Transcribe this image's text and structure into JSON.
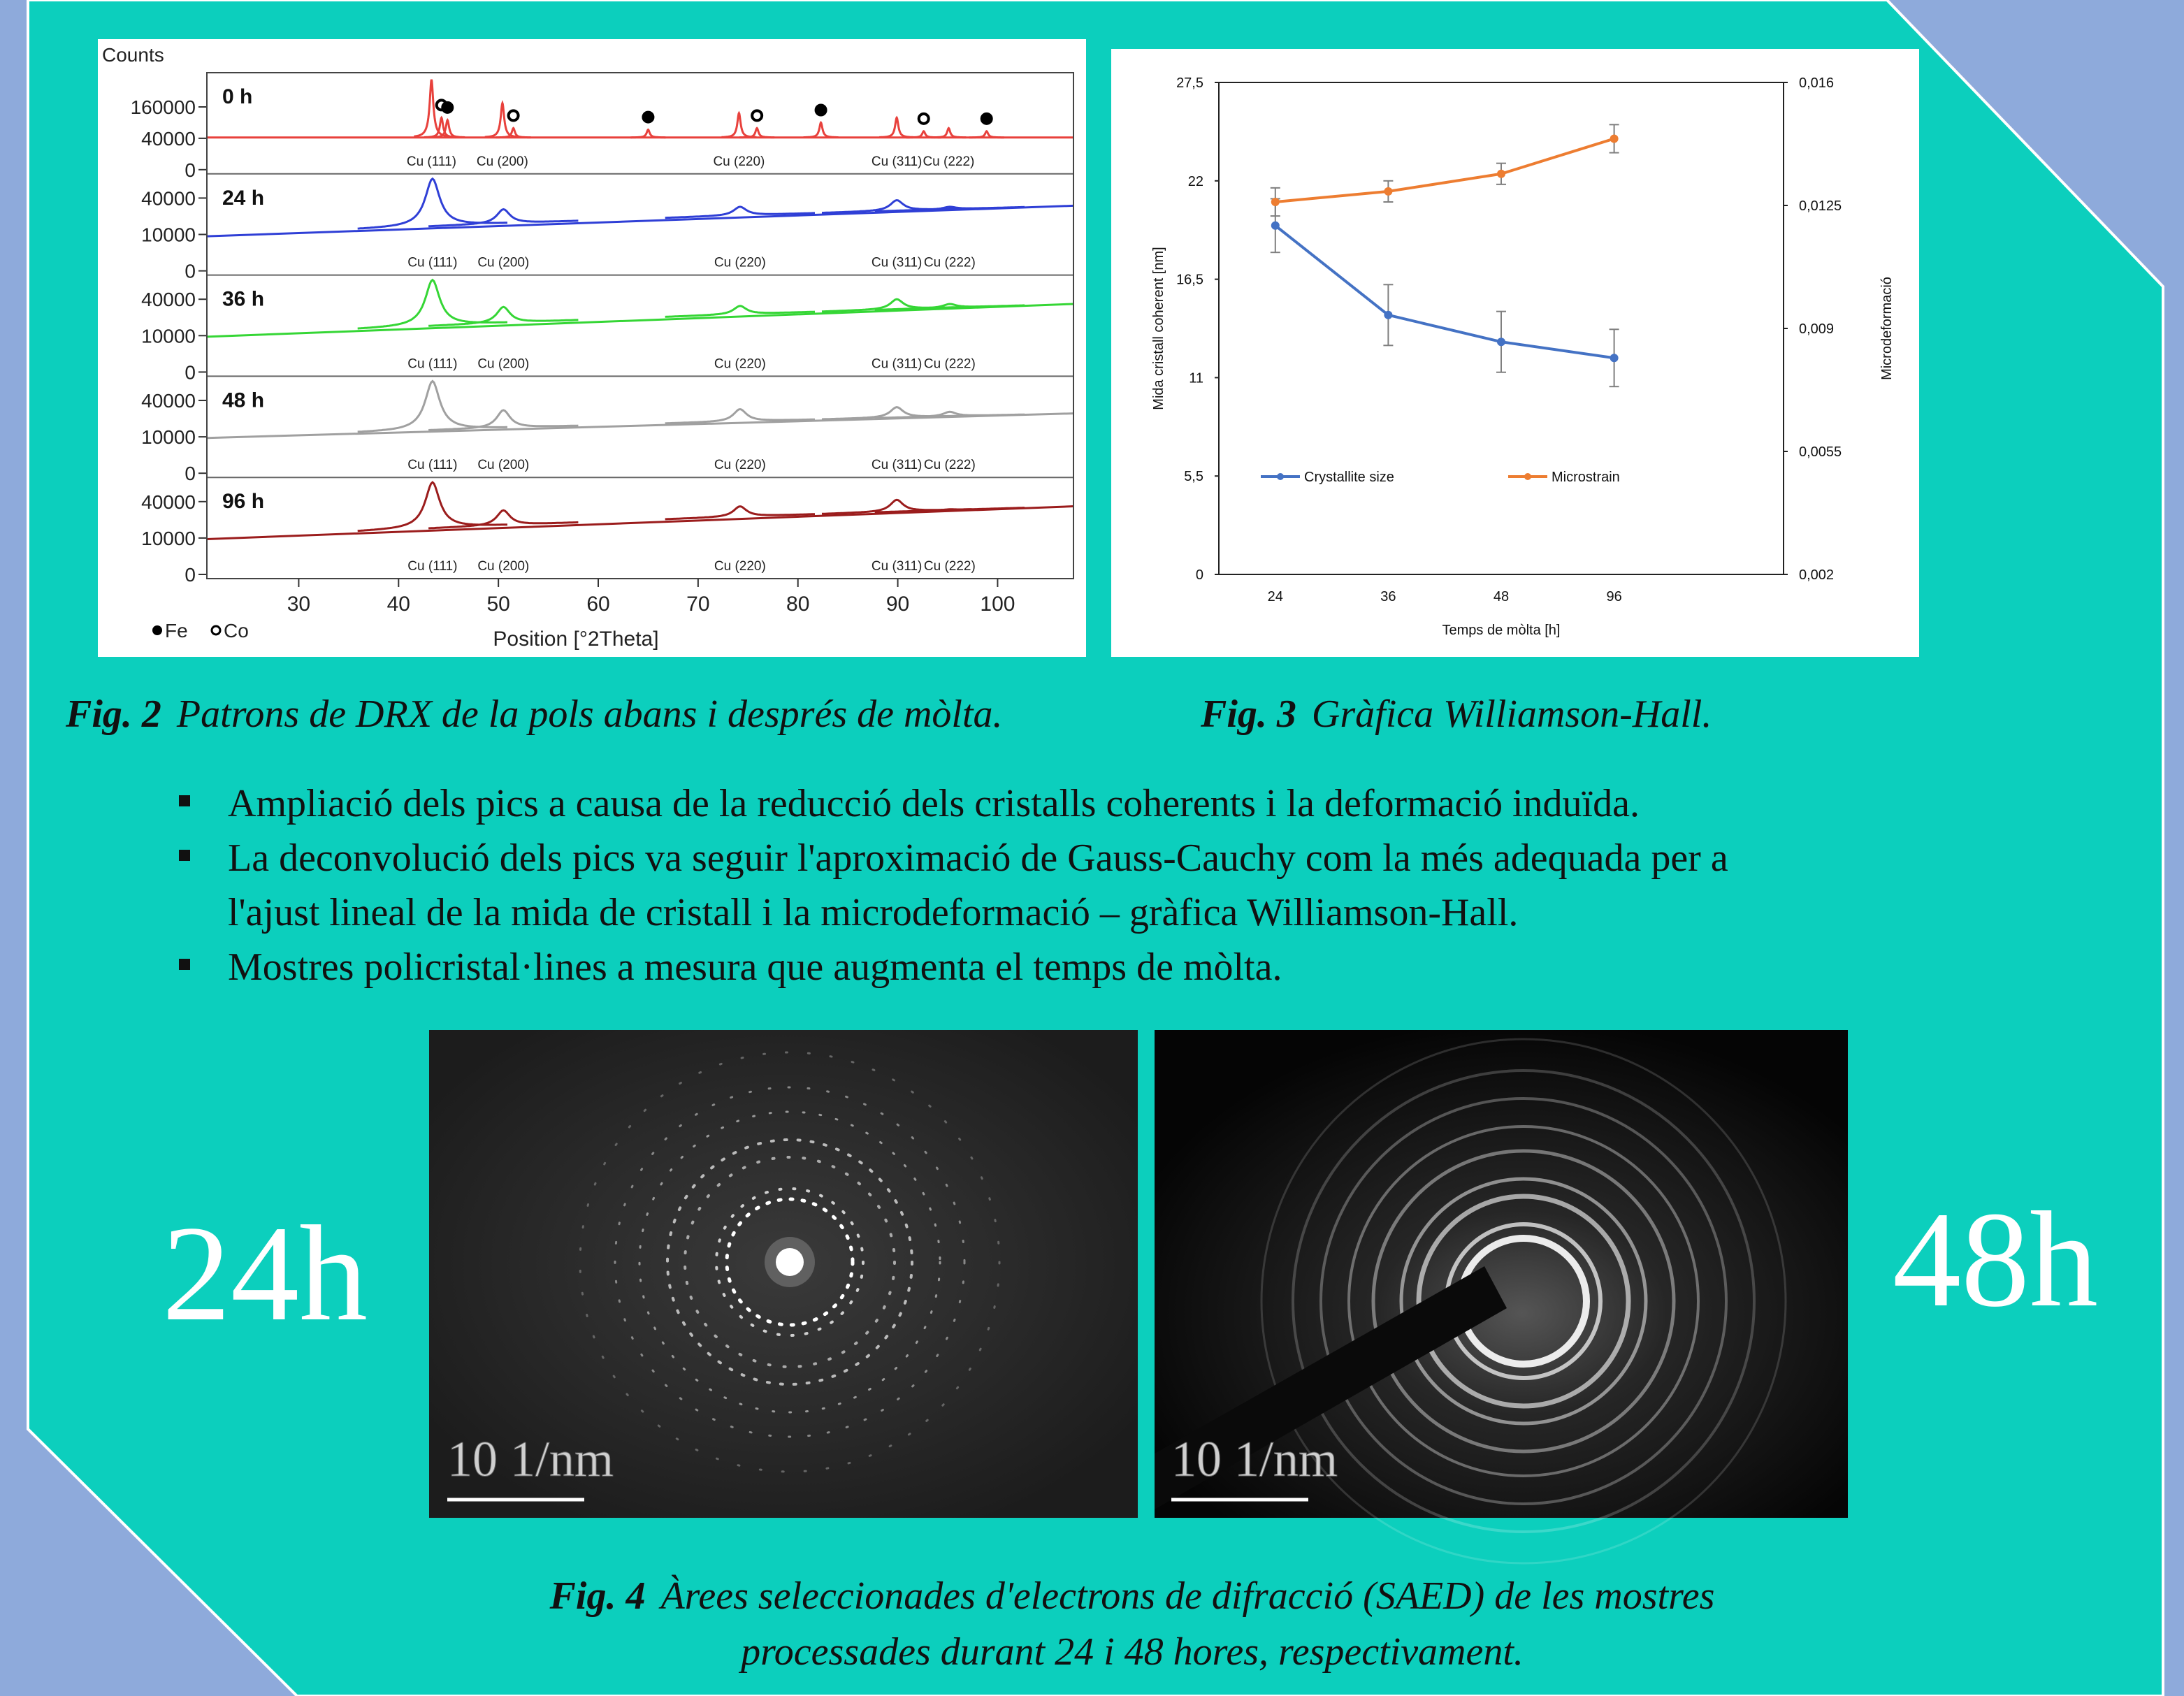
{
  "chart_data": [
    {
      "type": "xrd",
      "y_label": "Counts",
      "x_label": "Position [°2Theta]",
      "xlim": [
        20.8,
        107.6
      ],
      "xticks": [
        30,
        40,
        50,
        60,
        70,
        80,
        90,
        100
      ],
      "yscale": "sqrt",
      "legend": [
        {
          "name": "Fe",
          "marker": "filled"
        },
        {
          "name": "Co",
          "marker": "open"
        }
      ],
      "panels": [
        {
          "name": "0 h",
          "color": "#e8413c",
          "ylim": [
            0,
            350000
          ],
          "yticks": [
            0,
            40000,
            160000
          ],
          "background": [
            42000,
            42000
          ],
          "fwhm": 0.35,
          "peaks": [
            {
              "x": 43.3,
              "value": 330000,
              "label": "Cu (111)"
            },
            {
              "x": 44.3,
              "value": 110000,
              "marker": "Co"
            },
            {
              "x": 44.9,
              "value": 100000,
              "marker": "Fe"
            },
            {
              "x": 50.4,
              "value": 180000,
              "label": "Cu (200)"
            },
            {
              "x": 51.5,
              "value": 70000,
              "marker": "Co"
            },
            {
              "x": 65.0,
              "value": 65000,
              "marker": "Fe"
            },
            {
              "x": 74.1,
              "value": 130000,
              "label": "Cu (220)"
            },
            {
              "x": 75.9,
              "value": 70000,
              "marker": "Co"
            },
            {
              "x": 82.3,
              "value": 90000,
              "marker": "Fe"
            },
            {
              "x": 89.9,
              "value": 110000,
              "label": "Cu (311)"
            },
            {
              "x": 92.6,
              "value": 60000,
              "marker": "Co"
            },
            {
              "x": 95.1,
              "value": 70000,
              "label": "Cu (222)"
            },
            {
              "x": 98.9,
              "value": 60000,
              "marker": "Fe"
            }
          ]
        },
        {
          "name": "24 h",
          "color": "#2f3fd6",
          "ylim": [
            0,
            65000
          ],
          "yticks": [
            0,
            10000,
            40000
          ],
          "background": [
            9000,
            32000
          ],
          "fwhm": 1.5,
          "peaks": [
            {
              "x": 43.4,
              "value": 64000,
              "label": "Cu (111)"
            },
            {
              "x": 50.5,
              "value": 28600,
              "label": "Cu (200)"
            },
            {
              "x": 74.2,
              "value": 31000,
              "label": "Cu (220)"
            },
            {
              "x": 89.9,
              "value": 37700,
              "label": "Cu (311)"
            },
            {
              "x": 95.2,
              "value": 31000,
              "label": "Cu (222)"
            }
          ]
        },
        {
          "name": "36 h",
          "color": "#35d635",
          "ylim": [
            0,
            65000
          ],
          "yticks": [
            0,
            10000,
            40000
          ],
          "background": [
            9400,
            35000
          ],
          "fwhm": 1.5,
          "peaks": [
            {
              "x": 43.4,
              "value": 64000,
              "label": "Cu (111)"
            },
            {
              "x": 50.5,
              "value": 32000,
              "label": "Cu (200)"
            },
            {
              "x": 74.2,
              "value": 33000,
              "label": "Cu (220)"
            },
            {
              "x": 89.9,
              "value": 40000,
              "label": "Cu (311)"
            },
            {
              "x": 95.2,
              "value": 35000,
              "label": "Cu (222)"
            }
          ]
        },
        {
          "name": "48 h",
          "color": "#a0a0a0",
          "ylim": [
            0,
            65000
          ],
          "yticks": [
            0,
            10000,
            40000
          ],
          "background": [
            9400,
            27000
          ],
          "fwhm": 1.5,
          "peaks": [
            {
              "x": 43.4,
              "value": 64000,
              "label": "Cu (111)"
            },
            {
              "x": 50.5,
              "value": 30000,
              "label": "Cu (200)"
            },
            {
              "x": 74.2,
              "value": 31000,
              "label": "Cu (220)"
            },
            {
              "x": 89.9,
              "value": 33000,
              "label": "Cu (311)"
            },
            {
              "x": 95.2,
              "value": 28500,
              "label": "Cu (222)"
            }
          ]
        },
        {
          "name": "96 h",
          "color": "#9b1c1c",
          "ylim": [
            0,
            65000
          ],
          "yticks": [
            0,
            10000,
            40000
          ],
          "background": [
            9400,
            35000
          ],
          "fwhm": 1.5,
          "peaks": [
            {
              "x": 43.4,
              "value": 64000,
              "label": "Cu (111)"
            },
            {
              "x": 50.5,
              "value": 31000,
              "label": "Cu (200)"
            },
            {
              "x": 74.2,
              "value": 35000,
              "label": "Cu (220)"
            },
            {
              "x": 89.9,
              "value": 42000,
              "label": "Cu (311)"
            },
            {
              "x": 95.2,
              "value": 32000,
              "label": "Cu (222)"
            }
          ]
        }
      ]
    },
    {
      "type": "line",
      "categories": [
        "24",
        "36",
        "48",
        "96",
        null
      ],
      "x_label": "Temps de mòlta [h]",
      "y_label": "Mida cristall coherent [nm]",
      "y2_label": "Microdeformació",
      "ylim": [
        0,
        27.5
      ],
      "yticks": [
        0,
        {
          "value": 5.5,
          "label": "5,5"
        },
        11,
        {
          "value": 16.5,
          "label": "16,5"
        },
        22,
        {
          "value": 27.5,
          "label": "27,5"
        }
      ],
      "y2lim": [
        0.002,
        0.016
      ],
      "y2ticks": [
        {
          "value": 0.002,
          "label": "0,002"
        },
        {
          "value": 0.0055,
          "label": "0,0055"
        },
        {
          "value": 0.009,
          "label": "0,009"
        },
        {
          "value": 0.0125,
          "label": "0,0125"
        },
        {
          "value": 0.016,
          "label": "0,016"
        }
      ],
      "legend": "lower center",
      "series": [
        {
          "name": "Crystallite size",
          "color": "#4472c4",
          "values": [
            19.5,
            14.5,
            13.0,
            12.1,
            null
          ],
          "errors": [
            1.5,
            1.7,
            1.7,
            1.6,
            null
          ]
        },
        {
          "name": "Microstrain",
          "color": "#ed7d31",
          "axis": "y2",
          "values": [
            0.0126,
            0.0129,
            0.0134,
            0.0144,
            null
          ],
          "errors": [
            0.0004,
            0.0003,
            0.0003,
            0.0004,
            null
          ]
        }
      ]
    }
  ],
  "captions": [
    {
      "label": "Fig. 2",
      "text": "Patrons de DRX de la pols abans i després de mòlta."
    },
    {
      "label": "Fig. 3",
      "text": "Gràfica Williamson-Hall."
    }
  ],
  "bullets": [
    [
      "Ampliació dels pics a causa de la reducció dels cristalls coherents i la deformació induïda."
    ],
    [
      "La deconvolució dels pics va seguir l'aproximació de Gauss-Cauchy com la més adequada per a",
      "l'ajust lineal de la mida de cristall i la microdeformació – gràfica Williamson-Hall."
    ],
    [
      "Mostres policristal·lines a mesura que augmenta el temps de mòlta."
    ]
  ],
  "saed": [
    {
      "label": "24h",
      "scale_bar": "10 1/nm"
    },
    {
      "label": "48h",
      "scale_bar": "10 1/nm"
    }
  ],
  "fig4": {
    "label": "Fig. 4",
    "lines": [
      "Àrees seleccionades d'electrons de difracció (SAED) de les mostres",
      "processades durant 24 i 48 hores, respectivament."
    ]
  }
}
